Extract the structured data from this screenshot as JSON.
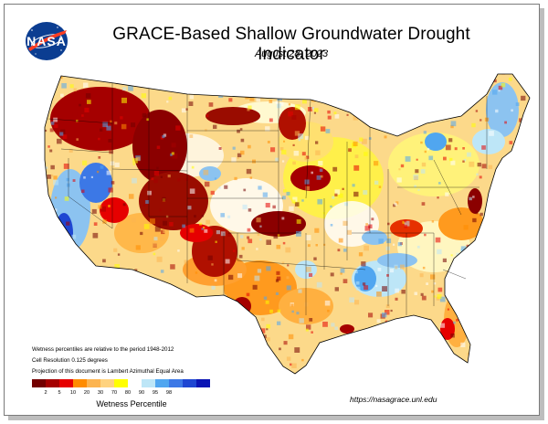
{
  "header": {
    "logo_text": "NASA",
    "title": "GRACE-Based Shallow Groundwater Drought Indicator",
    "date": "August 28, 2023"
  },
  "notes": {
    "line1": "Wetness percentiles are relative to the period 1948-2012",
    "line2": "Cell Resolution 0.125 degrees",
    "line3": "Projection of this document is Lambert Azimuthal Equal Area"
  },
  "legend": {
    "title": "Wetness Percentile",
    "ticks": [
      "2",
      "5",
      "10",
      "20",
      "30",
      "70",
      "80",
      "90",
      "95",
      "98"
    ],
    "colors": [
      "#730000",
      "#a50000",
      "#e60000",
      "#ff8c00",
      "#fcb450",
      "#ffd37f",
      "#ffff00",
      "#ffffff",
      "#bde6f7",
      "#50a6f0",
      "#3c78e6",
      "#1e46d2",
      "#0a14b4"
    ]
  },
  "footer": {
    "url": "https://nasagrace.unl.edu"
  }
}
